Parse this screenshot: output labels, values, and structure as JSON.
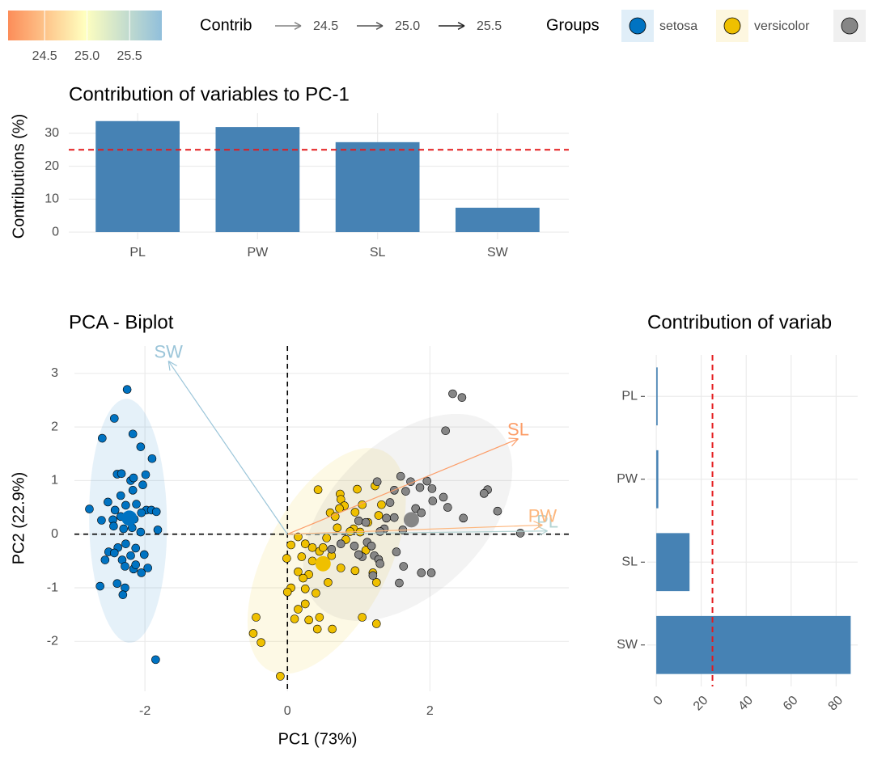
{
  "chart_data": [
    {
      "type": "bar",
      "title": "Contribution of variables to PC-1",
      "y_label": "Contributions (%)",
      "categories": [
        "PL",
        "PW",
        "SL",
        "SW"
      ],
      "values": [
        33.7,
        31.9,
        27.3,
        7.4
      ],
      "color": "#4682b4",
      "ylim": [
        -2.2,
        36.1
      ],
      "yticks": [
        0,
        10,
        20,
        30
      ],
      "reference": 25,
      "grid": true
    },
    {
      "type": "biplot",
      "title": "PCA - Biplot",
      "x_label": "PC1 (73%)",
      "y_label": "PC2 (22.9%)",
      "xlim": [
        -2.99,
        3.95
      ],
      "ylim": [
        -2.93,
        3.51
      ],
      "xticks": [
        -2,
        0,
        2
      ],
      "yticks": [
        -2,
        -1,
        0,
        1,
        2,
        3
      ],
      "grid": true,
      "legend_title": "Groups",
      "series": [
        {
          "name": "setosa",
          "color": "#0073C2",
          "center_x": -2.22,
          "center_y": 0.3,
          "x": [
            -2.25,
            -2.43,
            -2.6,
            -2.17,
            -2.06,
            -2.39,
            -2.33,
            -2.2,
            -2.16,
            -1.9,
            -1.99,
            -2.03,
            -2.17,
            -2.34,
            -2.52,
            -2.42,
            -2.27,
            -2.12,
            -1.98,
            -1.91,
            -1.84,
            -2.78,
            -2.61,
            -2.45,
            -2.34,
            -2.15,
            -2.05,
            -1.82,
            -2.44,
            -2.3,
            -2.18,
            -2.06,
            -2.38,
            -2.27,
            -2.13,
            -2.51,
            -2.43,
            -2.2,
            -2.01,
            -2.56,
            -2.32,
            -2.28,
            -2.16,
            -2.05,
            -1.96,
            -2.13,
            -2.39,
            -2.63,
            -2.28,
            -2.31,
            -1.85
          ],
          "y": [
            2.7,
            2.16,
            1.79,
            1.87,
            1.63,
            1.12,
            1.13,
            1,
            1.05,
            1.41,
            1.11,
            0.92,
            0.82,
            0.72,
            0.6,
            0.45,
            0.54,
            0.56,
            0.45,
            0.45,
            0.42,
            0.47,
            0.26,
            0.27,
            0.33,
            0.28,
            0.4,
            0.08,
            0.15,
            0.1,
            0.12,
            0.04,
            -0.25,
            -0.18,
            -0.26,
            -0.33,
            -0.35,
            -0.4,
            -0.38,
            -0.48,
            -0.48,
            -0.6,
            -0.65,
            -0.72,
            -0.63,
            -0.57,
            -0.92,
            -0.97,
            -1,
            -1.13,
            -2.34
          ]
        },
        {
          "name": "versicolor",
          "color": "#EFC000",
          "center_x": 0.5,
          "center_y": -0.55,
          "x": [
            0.43,
            0.74,
            0.98,
            1.23,
            1.32,
            1.05,
            0.75,
            0.8,
            0.73,
            0.95,
            0.6,
            0.67,
            1.13,
            1.28,
            0.93,
            0.7,
            1.02,
            0.88,
            0.55,
            0.25,
            0.15,
            0.05,
            0.35,
            0.45,
            0.62,
            0.2,
            0.35,
            0.5,
            0.82,
            1.1,
            -0.01,
            0.15,
            0.3,
            0.22,
            0.57,
            0.75,
            0.95,
            1.25,
            1.2,
            0.05,
            0,
            0.25,
            0.4,
            0.25,
            0.15,
            0.45,
            0.3,
            0.1,
            0.63,
            0.42,
            1.25,
            1.05,
            -0.44,
            -0.48,
            -0.37,
            -0.1
          ],
          "y": [
            0.83,
            0.75,
            0.84,
            0.9,
            0.55,
            0.55,
            0.65,
            0.53,
            0.48,
            0.41,
            0.4,
            0.33,
            0.22,
            0.35,
            0.1,
            0.12,
            0.04,
            0.05,
            -0.07,
            -0.18,
            -0.05,
            -0.2,
            -0.25,
            -0.32,
            -0.4,
            -0.42,
            -0.5,
            -0.25,
            -0.1,
            -0.3,
            -0.45,
            -0.7,
            -0.75,
            -0.82,
            -0.9,
            -0.63,
            -0.68,
            -0.9,
            -0.72,
            -1,
            -1.08,
            -1.02,
            -1.1,
            -1.3,
            -1.4,
            -1.55,
            -1.6,
            -1.58,
            -1.77,
            -1.77,
            -1.67,
            -1.55,
            -1.55,
            -1.85,
            -2.02,
            -2.65
          ]
        },
        {
          "name": null,
          "color": "#868686",
          "center_x": 1.74,
          "center_y": 0.27,
          "x": [
            2.32,
            2.45,
            2.22,
            1.26,
            1.59,
            1.73,
            1.96,
            2.03,
            1.86,
            1.66,
            1.5,
            1.44,
            2.81,
            2.76,
            2.19,
            2.04,
            2.25,
            2.47,
            3.27,
            2.95,
            1.8,
            1.5,
            1.39,
            1.62,
            1.36,
            1.88,
            1.3,
            1,
            1.1,
            0.94,
            1.12,
            1.18,
            1.05,
            1.22,
            1.28,
            1.53,
            1.63,
            1.3,
            1,
            1.88,
            2.02,
            1.57,
            0.62,
            0.75,
            1.2
          ],
          "y": [
            2.62,
            2.55,
            1.93,
            0.98,
            1.08,
            0.98,
            0.99,
            0.85,
            0.87,
            0.8,
            0.82,
            0.59,
            0.83,
            0.76,
            0.69,
            0.62,
            0.5,
            0.3,
            0.02,
            0.43,
            0.48,
            0.31,
            0.3,
            0.08,
            0.1,
            0.4,
            0.05,
            0.25,
            0.22,
            -0.22,
            -0.15,
            -0.22,
            -0.42,
            -0.4,
            -0.47,
            -0.33,
            -0.6,
            -0.55,
            -0.38,
            -0.72,
            -0.72,
            -0.91,
            -0.28,
            -0.18,
            -0.77
          ]
        }
      ],
      "variables": {
        "names": [
          "SL",
          "SW",
          "PL",
          "PW"
        ],
        "x": [
          3.24,
          -1.67,
          3.65,
          3.58
        ],
        "y": [
          1.78,
          3.23,
          0.06,
          0.17
        ],
        "contrib": [
          24.2,
          25.8,
          25.6,
          24.4
        ]
      },
      "contrib_legend": {
        "title": "Contrib",
        "ticks": [
          24.5,
          {
            "value": 25,
            "label": "25.0"
          },
          25.5
        ]
      },
      "color_scale": {
        "lim": [
          24.07,
          25.88
        ],
        "colors": [
          "#fc8d59",
          "#ffffbf",
          "#91bfdb"
        ],
        "ticks": [
          24.5,
          {
            "value": 25,
            "label": "25.0"
          },
          25.5
        ]
      }
    },
    {
      "type": "hbar",
      "title": "Contribution of variab",
      "categories": [
        "PL",
        "PW",
        "SL",
        "SW"
      ],
      "values": [
        0.6,
        0.9,
        14.8,
        86.5
      ],
      "color": "#4682b4",
      "xlim": [
        -4,
        89.6
      ],
      "xticks": [
        0,
        20,
        40,
        60,
        80
      ],
      "reference": 25,
      "grid": true
    }
  ]
}
